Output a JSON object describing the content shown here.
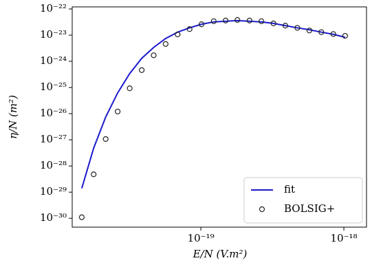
{
  "chart_data": {
    "type": "line",
    "xlabel": "E/N (V.m²)",
    "ylabel": "η/N (m²)",
    "xscale": "log",
    "yscale": "log",
    "xlim": [
      1.26e-20,
      1.44e-18
    ],
    "ylim": [
      4.6e-31,
      1.2e-22
    ],
    "xticks": [
      {
        "value": 1e-19,
        "label": "10⁻¹⁹"
      },
      {
        "value": 1e-18,
        "label": "10⁻¹⁸"
      }
    ],
    "yticks": [
      {
        "value": 1e-30,
        "label": "10⁻³⁰"
      },
      {
        "value": 1e-29,
        "label": "10⁻²⁹"
      },
      {
        "value": 1e-28,
        "label": "10⁻²⁸"
      },
      {
        "value": 1e-27,
        "label": "10⁻²⁷"
      },
      {
        "value": 1e-26,
        "label": "10⁻²⁶"
      },
      {
        "value": 1e-25,
        "label": "10⁻²⁵"
      },
      {
        "value": 1e-24,
        "label": "10⁻²⁴"
      },
      {
        "value": 1e-23,
        "label": "10⁻²³"
      },
      {
        "value": 1e-22,
        "label": "10⁻²²"
      }
    ],
    "x": [
      1.47e-20,
      1.78e-20,
      2.16e-20,
      2.62e-20,
      3.18e-20,
      3.86e-20,
      4.68e-20,
      5.67e-20,
      6.88e-20,
      8.34e-20,
      1.01e-19,
      1.23e-19,
      1.49e-19,
      1.8e-19,
      2.19e-19,
      2.65e-19,
      3.22e-19,
      3.9e-19,
      4.73e-19,
      5.74e-19,
      6.96e-19,
      8.44e-19,
      1.02e-18
    ],
    "legend": "lower right",
    "series": [
      {
        "name": "fit",
        "color": "#1a1acc",
        "style": "line",
        "values": [
          1.4e-29,
          4.8e-28,
          7.4e-27,
          6.2e-26,
          3.4e-25,
          1.3e-24,
          3.4e-24,
          7.4e-24,
          1.3e-23,
          1.9e-23,
          2.6e-23,
          3.2e-23,
          3.4e-23,
          3.6e-23,
          3.4e-23,
          3.2e-23,
          2.8e-23,
          2.3e-23,
          1.9e-23,
          1.6e-23,
          1.3e-23,
          1.07e-23,
          8.3e-24
        ]
      },
      {
        "name": "BOLSIG+",
        "color": "#222222",
        "style": "marker",
        "values": [
          1.1e-30,
          4.8e-29,
          1.07e-27,
          1.2e-26,
          9.3e-26,
          4.6e-25,
          1.7e-24,
          4.6e-24,
          1.07e-23,
          1.7e-23,
          2.6e-23,
          3.4e-23,
          3.6e-23,
          3.8e-23,
          3.6e-23,
          3.4e-23,
          2.8e-23,
          2.3e-23,
          1.9e-23,
          1.5e-23,
          1.3e-23,
          1.1e-23,
          9.4e-24
        ]
      }
    ]
  }
}
